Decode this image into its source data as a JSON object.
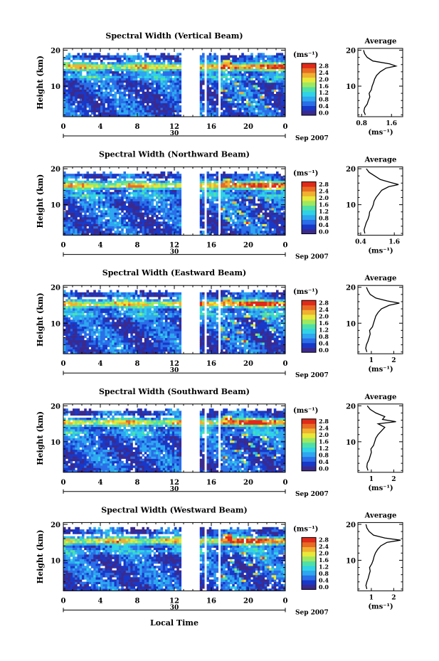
{
  "figure": {
    "xlabel": "Local Time",
    "date_label": "Sep 2007",
    "day_label": "30"
  },
  "colorbar": {
    "unit": "(ms⁻¹)",
    "ticks": [
      "0.0",
      "0.4",
      "0.8",
      "1.2",
      "1.6",
      "2.0",
      "2.4",
      "2.8"
    ],
    "colors": [
      "#3a2a8e",
      "#1838c8",
      "#2a6ee8",
      "#2ea6f0",
      "#30d2e6",
      "#4fe0a8",
      "#9ee860",
      "#e8e83a",
      "#f0b030",
      "#e86a24",
      "#e02a1a"
    ]
  },
  "chart_data": [
    {
      "type": "heatmap",
      "title": "Spectral Width (Vertical Beam)",
      "ylabel": "Height (km)",
      "xlim": [
        0,
        24
      ],
      "ylim": [
        1.5,
        20.5
      ],
      "xticks": [
        "0",
        "4",
        "8",
        "12",
        "16",
        "20",
        "0"
      ],
      "yticks": [
        "20",
        "10"
      ],
      "data_gaps_hours": [
        [
          12.7,
          14.8
        ],
        [
          15.3,
          15.6
        ],
        [
          16.7,
          17.0
        ]
      ],
      "note": "enhanced spectral width near 15-16 km, strongest after 17 LT"
    },
    {
      "type": "line",
      "title": "Average",
      "xlabel": "(ms⁻¹)",
      "ylabel": "",
      "xlim": [
        0.7,
        1.9
      ],
      "ylim": [
        1.5,
        20.5
      ],
      "xticks": [
        "0.8",
        "1.6"
      ],
      "yticks": [
        "20",
        "10"
      ],
      "x": [
        0.9,
        0.86,
        0.88,
        0.95,
        0.98,
        1.02,
        1.0,
        1.06,
        1.08,
        1.12,
        1.15,
        1.2,
        1.3,
        1.45,
        1.72,
        1.55,
        1.1,
        0.95,
        0.88,
        0.85
      ],
      "y": [
        2,
        3,
        4,
        5,
        6,
        7,
        8,
        9,
        10,
        11,
        12,
        13,
        14,
        15,
        15.6,
        16.2,
        17,
        18,
        19,
        20
      ]
    },
    {
      "type": "heatmap",
      "title": "Spectral Width (Northward Beam)",
      "ylabel": "Height (km)",
      "xlim": [
        0,
        24
      ],
      "ylim": [
        1.5,
        20.5
      ],
      "xticks": [
        "0",
        "4",
        "8",
        "12",
        "16",
        "20",
        "0"
      ],
      "yticks": [
        "20",
        "10"
      ],
      "data_gaps_hours": [
        [
          12.7,
          14.8
        ],
        [
          15.3,
          15.6
        ],
        [
          16.7,
          17.0
        ]
      ],
      "note": "enhanced spectral width near 15-16 km, strongest after 17 LT"
    },
    {
      "type": "line",
      "title": "Average",
      "xlabel": "(ms⁻¹)",
      "ylabel": "",
      "xlim": [
        0.3,
        1.9
      ],
      "ylim": [
        1.5,
        20.5
      ],
      "xticks": [
        "0.4",
        "1.6"
      ],
      "yticks": [
        "20",
        "10"
      ],
      "x": [
        0.55,
        0.52,
        0.56,
        0.6,
        0.66,
        0.7,
        0.72,
        0.8,
        0.85,
        0.88,
        0.95,
        1.05,
        1.15,
        1.4,
        1.75,
        1.45,
        1.1,
        0.9,
        0.7,
        0.6
      ],
      "y": [
        2,
        3,
        4,
        5,
        6,
        7,
        8,
        9,
        10,
        11,
        12,
        13,
        14,
        15,
        15.6,
        16.2,
        17,
        18,
        19,
        20
      ]
    },
    {
      "type": "heatmap",
      "title": "Spectral Width (Eastward Beam)",
      "ylabel": "Height (km)",
      "xlim": [
        0,
        24
      ],
      "ylim": [
        1.5,
        20.5
      ],
      "xticks": [
        "0",
        "4",
        "8",
        "12",
        "16",
        "20",
        "0"
      ],
      "yticks": [
        "20",
        "10"
      ],
      "data_gaps_hours": [
        [
          12.7,
          14.8
        ],
        [
          15.3,
          15.6
        ],
        [
          16.7,
          17.0
        ]
      ],
      "note": "enhanced spectral width near 15-16 km, strongest after 17 LT"
    },
    {
      "type": "line",
      "title": "Average",
      "xlabel": "(ms⁻¹)",
      "ylabel": "",
      "xlim": [
        0.4,
        2.4
      ],
      "ylim": [
        1.5,
        20.5
      ],
      "xticks": [
        "1",
        "2"
      ],
      "yticks": [
        "20",
        "10"
      ],
      "x": [
        0.8,
        0.75,
        0.78,
        0.85,
        0.9,
        0.95,
        0.92,
        1.05,
        1.1,
        1.15,
        1.2,
        1.3,
        1.45,
        1.8,
        2.25,
        1.7,
        1.2,
        0.95,
        0.85,
        0.78
      ],
      "y": [
        2,
        3,
        4,
        5,
        6,
        7,
        8,
        9,
        10,
        11,
        12,
        13,
        14,
        15,
        15.6,
        16.2,
        17,
        18,
        19,
        20
      ]
    },
    {
      "type": "heatmap",
      "title": "Spectral Width (Southward Beam)",
      "ylabel": "Height (km)",
      "xlim": [
        0,
        24
      ],
      "ylim": [
        1.5,
        20.5
      ],
      "xticks": [
        "0",
        "4",
        "8",
        "12",
        "16",
        "20",
        "0"
      ],
      "yticks": [
        "20",
        "10"
      ],
      "data_gaps_hours": [
        [
          12.7,
          14.8
        ],
        [
          15.3,
          15.6
        ],
        [
          16.7,
          17.0
        ]
      ],
      "note": "enhanced spectral width near 15-16 km, strongest after 17 LT"
    },
    {
      "type": "line",
      "title": "Average",
      "xlabel": "(ms⁻¹)",
      "ylabel": "",
      "xlim": [
        0.4,
        2.4
      ],
      "ylim": [
        1.5,
        20.5
      ],
      "xticks": [
        "1",
        "2"
      ],
      "yticks": [
        "20",
        "10"
      ],
      "x": [
        0.85,
        0.8,
        0.82,
        0.9,
        0.95,
        1.0,
        0.98,
        1.1,
        1.15,
        1.2,
        1.3,
        1.45,
        1.6,
        1.3,
        2.1,
        1.5,
        1.6,
        1.2,
        0.95,
        0.82
      ],
      "y": [
        2,
        3,
        4,
        5,
        6,
        7,
        8,
        9,
        10,
        11,
        12,
        13,
        14,
        15,
        15.6,
        16.2,
        17,
        18,
        19,
        20
      ]
    },
    {
      "type": "heatmap",
      "title": "Spectral Width (Westward Beam)",
      "ylabel": "Height (km)",
      "xlim": [
        0,
        24
      ],
      "ylim": [
        1.5,
        20.5
      ],
      "xticks": [
        "0",
        "4",
        "8",
        "12",
        "16",
        "20",
        "0"
      ],
      "yticks": [
        "20",
        "10"
      ],
      "data_gaps_hours": [
        [
          12.7,
          14.8
        ],
        [
          15.3,
          15.6
        ],
        [
          16.7,
          17.0
        ]
      ],
      "note": "enhanced spectral width near 15-16 km, strongest after 17 LT"
    },
    {
      "type": "line",
      "title": "Average",
      "xlabel": "(ms⁻¹)",
      "ylabel": "",
      "xlim": [
        0.4,
        2.4
      ],
      "ylim": [
        1.5,
        20.5
      ],
      "xticks": [
        "1",
        "2"
      ],
      "yticks": [
        "20",
        "10"
      ],
      "x": [
        0.8,
        0.76,
        0.8,
        0.86,
        0.9,
        0.95,
        0.92,
        1.02,
        1.08,
        1.12,
        1.18,
        1.28,
        1.42,
        1.7,
        2.3,
        1.6,
        1.1,
        0.9,
        0.8,
        0.76
      ],
      "y": [
        2,
        3,
        4,
        5,
        6,
        7,
        8,
        9,
        10,
        11,
        12,
        13,
        14,
        15,
        15.6,
        16.2,
        17,
        18,
        19,
        20
      ]
    }
  ]
}
